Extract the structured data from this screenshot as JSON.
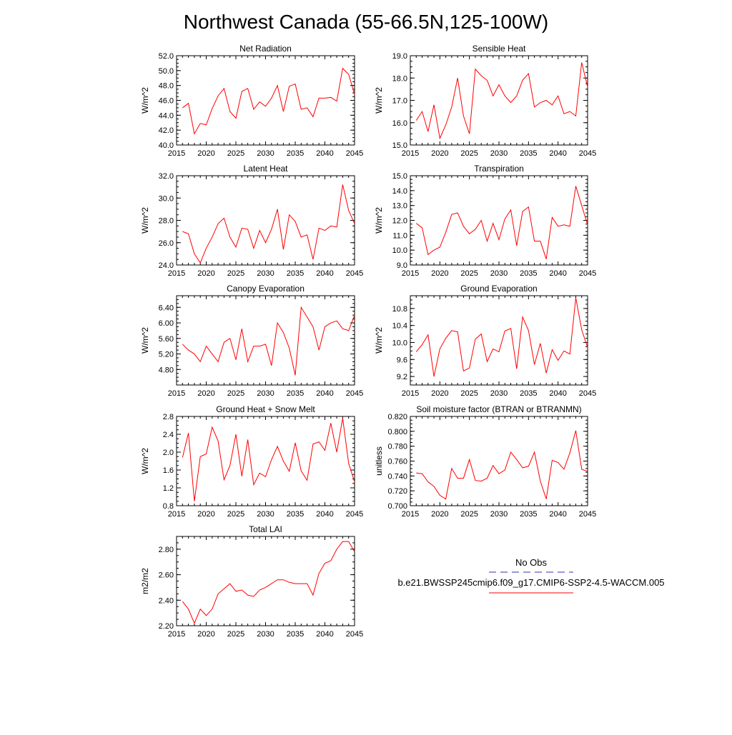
{
  "figure": {
    "title": "Northwest Canada (55-66.5N,125-100W)"
  },
  "colors": {
    "series_line": "#ff0000",
    "obs_line": "#3333aa",
    "axis": "#000000"
  },
  "legend": {
    "obs_label": "No Obs",
    "model_label": "b.e21.BWSSP245cmip6.f09_g17.CMIP6-SSP2-4.5-WACCM.005"
  },
  "chart_data": [
    {
      "type": "line",
      "title": "Net Radiation",
      "xlabel": "",
      "ylabel": "W/m^2",
      "xlim": [
        2015,
        2045
      ],
      "ylim": [
        40,
        52
      ],
      "xticks": [
        2015,
        2020,
        2025,
        2030,
        2035,
        2040,
        2045
      ],
      "xtick_labels": [
        "2015",
        "2020",
        "2025",
        "2030",
        "2035",
        "2040",
        "2045"
      ],
      "yticks": [
        40,
        42,
        44,
        46,
        48,
        50,
        52
      ],
      "ytick_labels": [
        "40.0",
        "42.0",
        "44.0",
        "46.0",
        "48.0",
        "50.0",
        "52.0"
      ],
      "x": [
        2016,
        2017,
        2018,
        2019,
        2020,
        2021,
        2022,
        2023,
        2024,
        2025,
        2026,
        2027,
        2028,
        2029,
        2030,
        2031,
        2032,
        2033,
        2034,
        2035,
        2036,
        2037,
        2038,
        2039,
        2040,
        2041,
        2042,
        2043,
        2044,
        2045
      ],
      "series": [
        {
          "name": "b.e21.BWSSP245cmip6.f09_g17.CMIP6-SSP2-4.5-WACCM.005",
          "values": [
            45.0,
            45.6,
            41.5,
            42.9,
            42.7,
            44.9,
            46.6,
            47.6,
            44.5,
            43.6,
            47.2,
            47.6,
            44.8,
            45.8,
            45.2,
            46.3,
            48.0,
            44.5,
            47.9,
            48.2,
            44.8,
            45.0,
            43.8,
            46.3,
            46.3,
            46.4,
            45.9,
            50.3,
            49.5,
            46.8
          ]
        }
      ]
    },
    {
      "type": "line",
      "title": "Sensible Heat",
      "xlabel": "",
      "ylabel": "W/m^2",
      "xlim": [
        2015,
        2045
      ],
      "ylim": [
        15,
        19
      ],
      "xticks": [
        2015,
        2020,
        2025,
        2030,
        2035,
        2040,
        2045
      ],
      "xtick_labels": [
        "2015",
        "2020",
        "2025",
        "2030",
        "2035",
        "2040",
        "2045"
      ],
      "yticks": [
        15,
        16,
        17,
        18,
        19
      ],
      "ytick_labels": [
        "15.0",
        "16.0",
        "17.0",
        "18.0",
        "19.0"
      ],
      "x": [
        2016,
        2017,
        2018,
        2019,
        2020,
        2021,
        2022,
        2023,
        2024,
        2025,
        2026,
        2027,
        2028,
        2029,
        2030,
        2031,
        2032,
        2033,
        2034,
        2035,
        2036,
        2037,
        2038,
        2039,
        2040,
        2041,
        2042,
        2043,
        2044,
        2045
      ],
      "series": [
        {
          "name": "b.e21.BWSSP245cmip6.f09_g17.CMIP6-SSP2-4.5-WACCM.005",
          "values": [
            16.1,
            16.5,
            15.6,
            16.8,
            15.3,
            15.9,
            16.7,
            18.0,
            16.3,
            15.5,
            18.4,
            18.1,
            17.9,
            17.2,
            17.7,
            17.2,
            16.9,
            17.2,
            17.9,
            18.2,
            16.7,
            16.9,
            17.0,
            16.8,
            17.2,
            16.4,
            16.5,
            16.3,
            18.7,
            17.6
          ]
        }
      ]
    },
    {
      "type": "line",
      "title": "Latent Heat",
      "xlabel": "",
      "ylabel": "W/m^2",
      "xlim": [
        2015,
        2045
      ],
      "ylim": [
        24,
        32
      ],
      "xticks": [
        2015,
        2020,
        2025,
        2030,
        2035,
        2040,
        2045
      ],
      "xtick_labels": [
        "2015",
        "2020",
        "2025",
        "2030",
        "2035",
        "2040",
        "2045"
      ],
      "yticks": [
        24,
        26,
        28,
        30,
        32
      ],
      "ytick_labels": [
        "24.0",
        "26.0",
        "28.0",
        "30.0",
        "32.0"
      ],
      "x": [
        2016,
        2017,
        2018,
        2019,
        2020,
        2021,
        2022,
        2023,
        2024,
        2025,
        2026,
        2027,
        2028,
        2029,
        2030,
        2031,
        2032,
        2033,
        2034,
        2035,
        2036,
        2037,
        2038,
        2039,
        2040,
        2041,
        2042,
        2043,
        2044,
        2045
      ],
      "series": [
        {
          "name": "b.e21.BWSSP245cmip6.f09_g17.CMIP6-SSP2-4.5-WACCM.005",
          "values": [
            27.0,
            26.8,
            25.0,
            24.2,
            25.5,
            26.5,
            27.7,
            28.2,
            26.5,
            25.6,
            27.3,
            27.2,
            25.5,
            27.1,
            26.0,
            27.2,
            29.0,
            25.4,
            28.5,
            27.9,
            26.5,
            26.7,
            24.5,
            27.3,
            27.1,
            27.5,
            27.4,
            31.2,
            28.9,
            27.7
          ]
        }
      ]
    },
    {
      "type": "line",
      "title": "Transpiration",
      "xlabel": "",
      "ylabel": "W/m^2",
      "xlim": [
        2015,
        2045
      ],
      "ylim": [
        9,
        15
      ],
      "xticks": [
        2015,
        2020,
        2025,
        2030,
        2035,
        2040,
        2045
      ],
      "xtick_labels": [
        "2015",
        "2020",
        "2025",
        "2030",
        "2035",
        "2040",
        "2045"
      ],
      "yticks": [
        9,
        10,
        11,
        12,
        13,
        14,
        15
      ],
      "ytick_labels": [
        "9.0",
        "10.0",
        "11.0",
        "12.0",
        "13.0",
        "14.0",
        "15.0"
      ],
      "x": [
        2016,
        2017,
        2018,
        2019,
        2020,
        2021,
        2022,
        2023,
        2024,
        2025,
        2026,
        2027,
        2028,
        2029,
        2030,
        2031,
        2032,
        2033,
        2034,
        2035,
        2036,
        2037,
        2038,
        2039,
        2040,
        2041,
        2042,
        2043,
        2044,
        2045
      ],
      "series": [
        {
          "name": "b.e21.BWSSP245cmip6.f09_g17.CMIP6-SSP2-4.5-WACCM.005",
          "values": [
            11.8,
            11.5,
            9.7,
            10.0,
            10.2,
            11.2,
            12.4,
            12.5,
            11.6,
            11.1,
            11.4,
            12.0,
            10.6,
            11.8,
            10.7,
            12.1,
            12.7,
            10.3,
            12.6,
            12.9,
            10.6,
            10.6,
            9.4,
            12.2,
            11.6,
            11.7,
            11.6,
            14.3,
            13.0,
            11.7
          ]
        }
      ]
    },
    {
      "type": "line",
      "title": "Canopy Evaporation",
      "xlabel": "",
      "ylabel": "W/m^2",
      "xlim": [
        2015,
        2045
      ],
      "ylim": [
        4.4,
        6.7
      ],
      "xticks": [
        2015,
        2020,
        2025,
        2030,
        2035,
        2040,
        2045
      ],
      "xtick_labels": [
        "2015",
        "2020",
        "2025",
        "2030",
        "2035",
        "2040",
        "2045"
      ],
      "yticks": [
        4.8,
        5.2,
        5.6,
        6.0,
        6.4
      ],
      "ytick_labels": [
        "4.80",
        "5.20",
        "5.60",
        "6.00",
        "6.40"
      ],
      "x": [
        2016,
        2017,
        2018,
        2019,
        2020,
        2021,
        2022,
        2023,
        2024,
        2025,
        2026,
        2027,
        2028,
        2029,
        2030,
        2031,
        2032,
        2033,
        2034,
        2035,
        2036,
        2037,
        2038,
        2039,
        2040,
        2041,
        2042,
        2043,
        2044,
        2045
      ],
      "series": [
        {
          "name": "b.e21.BWSSP245cmip6.f09_g17.CMIP6-SSP2-4.5-WACCM.005",
          "values": [
            5.45,
            5.3,
            5.2,
            5.0,
            5.4,
            5.2,
            5.0,
            5.5,
            5.6,
            5.05,
            5.85,
            5.0,
            5.4,
            5.4,
            5.45,
            4.9,
            6.0,
            5.75,
            5.35,
            4.65,
            6.4,
            6.15,
            5.9,
            5.3,
            5.9,
            6.0,
            6.05,
            5.85,
            5.8,
            6.2
          ]
        }
      ]
    },
    {
      "type": "line",
      "title": "Ground Evaporation",
      "xlabel": "",
      "ylabel": "W/m^2",
      "xlim": [
        2015,
        2045
      ],
      "ylim": [
        9.0,
        11.1
      ],
      "xticks": [
        2015,
        2020,
        2025,
        2030,
        2035,
        2040,
        2045
      ],
      "xtick_labels": [
        "2015",
        "2020",
        "2025",
        "2030",
        "2035",
        "2040",
        "2045"
      ],
      "yticks": [
        9.2,
        9.6,
        10.0,
        10.4,
        10.8
      ],
      "ytick_labels": [
        "9.2",
        "9.6",
        "10.0",
        "10.4",
        "10.8"
      ],
      "x": [
        2016,
        2017,
        2018,
        2019,
        2020,
        2021,
        2022,
        2023,
        2024,
        2025,
        2026,
        2027,
        2028,
        2029,
        2030,
        2031,
        2032,
        2033,
        2034,
        2035,
        2036,
        2037,
        2038,
        2039,
        2040,
        2041,
        2042,
        2043,
        2044,
        2045
      ],
      "series": [
        {
          "name": "b.e21.BWSSP245cmip6.f09_g17.CMIP6-SSP2-4.5-WACCM.005",
          "values": [
            9.78,
            9.95,
            10.18,
            9.2,
            9.85,
            10.1,
            10.28,
            10.25,
            9.33,
            9.4,
            10.08,
            10.2,
            9.55,
            9.85,
            9.78,
            10.27,
            10.33,
            9.38,
            10.6,
            10.28,
            9.48,
            9.98,
            9.28,
            9.83,
            9.58,
            9.8,
            9.73,
            11.05,
            10.3,
            9.88
          ]
        }
      ]
    },
    {
      "type": "line",
      "title": "Ground Heat + Snow Melt",
      "xlabel": "",
      "ylabel": "W/m^2",
      "xlim": [
        2015,
        2045
      ],
      "ylim": [
        0.8,
        2.8
      ],
      "xticks": [
        2015,
        2020,
        2025,
        2030,
        2035,
        2040,
        2045
      ],
      "xtick_labels": [
        "2015",
        "2020",
        "2025",
        "2030",
        "2035",
        "2040",
        "2045"
      ],
      "yticks": [
        0.8,
        1.2,
        1.6,
        2.0,
        2.4,
        2.8
      ],
      "ytick_labels": [
        "0.8",
        "1.2",
        "1.6",
        "2.0",
        "2.4",
        "2.8"
      ],
      "x": [
        2016,
        2017,
        2018,
        2019,
        2020,
        2021,
        2022,
        2023,
        2024,
        2025,
        2026,
        2027,
        2028,
        2029,
        2030,
        2031,
        2032,
        2033,
        2034,
        2035,
        2036,
        2037,
        2038,
        2039,
        2040,
        2041,
        2042,
        2043,
        2044,
        2045
      ],
      "series": [
        {
          "name": "b.e21.BWSSP245cmip6.f09_g17.CMIP6-SSP2-4.5-WACCM.005",
          "values": [
            1.88,
            2.43,
            0.9,
            1.9,
            1.96,
            2.56,
            2.25,
            1.38,
            1.7,
            2.4,
            1.46,
            2.28,
            1.27,
            1.53,
            1.45,
            1.83,
            2.13,
            1.8,
            1.57,
            2.21,
            1.58,
            1.37,
            2.18,
            2.23,
            2.04,
            2.65,
            2.0,
            2.76,
            1.75,
            1.33
          ]
        }
      ]
    },
    {
      "type": "line",
      "title": "Soil moisture factor (BTRAN or BTRANMN)",
      "xlabel": "",
      "ylabel": "unitless",
      "xlim": [
        2015,
        2045
      ],
      "ylim": [
        0.7,
        0.82
      ],
      "xticks": [
        2015,
        2020,
        2025,
        2030,
        2035,
        2040,
        2045
      ],
      "xtick_labels": [
        "2015",
        "2020",
        "2025",
        "2030",
        "2035",
        "2040",
        "2045"
      ],
      "yticks": [
        0.7,
        0.72,
        0.74,
        0.76,
        0.78,
        0.8,
        0.82
      ],
      "ytick_labels": [
        "0.700",
        "0.720",
        "0.740",
        "0.760",
        "0.780",
        "0.800",
        "0.820"
      ],
      "x": [
        2016,
        2017,
        2018,
        2019,
        2020,
        2021,
        2022,
        2023,
        2024,
        2025,
        2026,
        2027,
        2028,
        2029,
        2030,
        2031,
        2032,
        2033,
        2034,
        2035,
        2036,
        2037,
        2038,
        2039,
        2040,
        2041,
        2042,
        2043,
        2044,
        2045
      ],
      "series": [
        {
          "name": "b.e21.BWSSP245cmip6.f09_g17.CMIP6-SSP2-4.5-WACCM.005",
          "values": [
            0.744,
            0.743,
            0.732,
            0.726,
            0.714,
            0.709,
            0.75,
            0.737,
            0.737,
            0.762,
            0.734,
            0.733,
            0.737,
            0.754,
            0.743,
            0.748,
            0.772,
            0.762,
            0.751,
            0.753,
            0.772,
            0.733,
            0.709,
            0.761,
            0.758,
            0.749,
            0.771,
            0.801,
            0.749,
            0.746
          ]
        }
      ]
    },
    {
      "type": "line",
      "title": "Total LAI",
      "xlabel": "",
      "ylabel": "m2/m2",
      "xlim": [
        2015,
        2045
      ],
      "ylim": [
        2.2,
        2.9
      ],
      "xticks": [
        2015,
        2020,
        2025,
        2030,
        2035,
        2040,
        2045
      ],
      "xtick_labels": [
        "2015",
        "2020",
        "2025",
        "2030",
        "2035",
        "2040",
        "2045"
      ],
      "yticks": [
        2.2,
        2.4,
        2.6,
        2.8
      ],
      "ytick_labels": [
        "2.20",
        "2.40",
        "2.60",
        "2.80"
      ],
      "x": [
        2016,
        2017,
        2018,
        2019,
        2020,
        2021,
        2022,
        2023,
        2024,
        2025,
        2026,
        2027,
        2028,
        2029,
        2030,
        2031,
        2032,
        2033,
        2034,
        2035,
        2036,
        2037,
        2038,
        2039,
        2040,
        2041,
        2042,
        2043,
        2044,
        2045
      ],
      "series": [
        {
          "name": "b.e21.BWSSP245cmip6.f09_g17.CMIP6-SSP2-4.5-WACCM.005",
          "values": [
            2.39,
            2.33,
            2.22,
            2.33,
            2.28,
            2.33,
            2.45,
            2.49,
            2.53,
            2.47,
            2.48,
            2.44,
            2.43,
            2.48,
            2.5,
            2.53,
            2.56,
            2.56,
            2.54,
            2.53,
            2.53,
            2.53,
            2.44,
            2.61,
            2.69,
            2.71,
            2.8,
            2.86,
            2.86,
            2.78
          ]
        }
      ]
    }
  ]
}
